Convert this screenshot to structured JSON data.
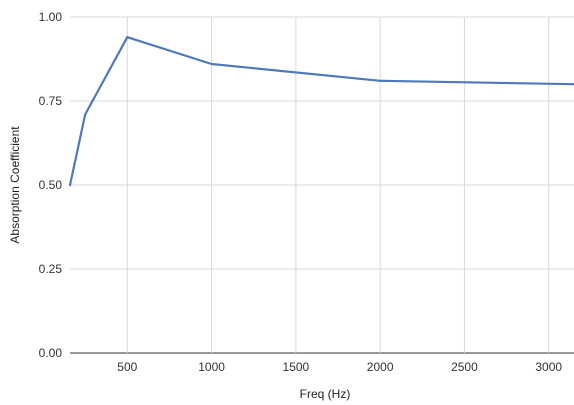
{
  "chart_data": {
    "type": "line",
    "title": "",
    "xlabel": "Freq (Hz)",
    "ylabel": "Absorption Coefficient",
    "xlim": [
      160,
      3150
    ],
    "ylim": [
      0,
      1
    ],
    "x_ticks": [
      500,
      1000,
      1500,
      2000,
      2500,
      3000
    ],
    "x_tick_labels": [
      "500",
      "1000",
      "1500",
      "2000",
      "2500",
      "3000"
    ],
    "y_ticks": [
      0,
      0.25,
      0.5,
      0.75,
      1
    ],
    "y_tick_labels": [
      "0.00",
      "0.25",
      "0.50",
      "0.75",
      "1.00"
    ],
    "grid": true,
    "legend": "none",
    "series": [
      {
        "color": "#4e79bd",
        "x": [
          160,
          250,
          500,
          1000,
          2000,
          3150
        ],
        "y": [
          0.5,
          0.71,
          0.94,
          0.86,
          0.81,
          0.8
        ]
      }
    ]
  }
}
